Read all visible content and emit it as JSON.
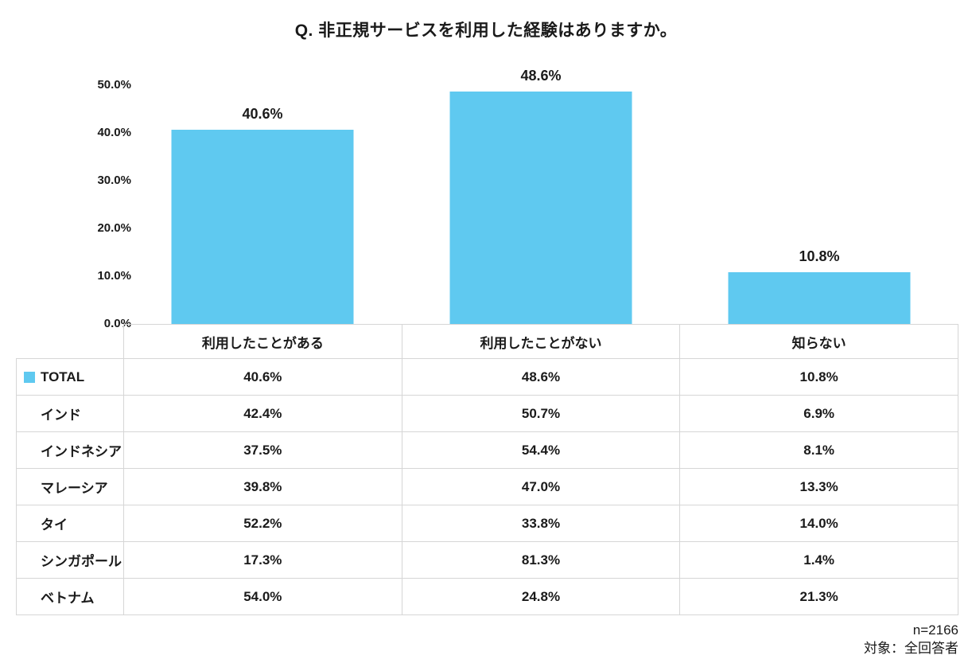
{
  "title": "Q. 非正規サービスを利用した経験はありますか。",
  "colors": {
    "bar": "#5FC9F0",
    "table_border": "#d6d6d6",
    "text": "#1a1a1a"
  },
  "chart_data": {
    "type": "bar",
    "title": "Q. 非正規サービスを利用した経験はありますか。",
    "categories": [
      "利用したことがある",
      "利用したことがない",
      "知らない"
    ],
    "series": [
      {
        "name": "TOTAL",
        "values": [
          40.6,
          48.6,
          10.8
        ]
      }
    ],
    "value_labels": [
      "40.6%",
      "48.6%",
      "10.8%"
    ],
    "xlabel": "",
    "ylabel": "",
    "ylim": [
      0,
      50
    ],
    "ytick_labels": [
      "0.0%",
      "10.0%",
      "20.0%",
      "30.0%",
      "40.0%",
      "50.0%"
    ],
    "grid": false,
    "legend_position": "table-left"
  },
  "table": {
    "columns": [
      "利用したことがある",
      "利用したことがない",
      "知らない"
    ],
    "rows": [
      {
        "label": "TOTAL",
        "legend": true,
        "values": [
          "40.6%",
          "48.6%",
          "10.8%"
        ]
      },
      {
        "label": "インド",
        "legend": false,
        "values": [
          "42.4%",
          "50.7%",
          "6.9%"
        ]
      },
      {
        "label": "インドネシア",
        "legend": false,
        "values": [
          "37.5%",
          "54.4%",
          "8.1%"
        ]
      },
      {
        "label": "マレーシア",
        "legend": false,
        "values": [
          "39.8%",
          "47.0%",
          "13.3%"
        ]
      },
      {
        "label": "タイ",
        "legend": false,
        "values": [
          "52.2%",
          "33.8%",
          "14.0%"
        ]
      },
      {
        "label": "シンガポール",
        "legend": false,
        "values": [
          "17.3%",
          "81.3%",
          "1.4%"
        ]
      },
      {
        "label": "ベトナム",
        "legend": false,
        "values": [
          "54.0%",
          "24.8%",
          "21.3%"
        ]
      }
    ]
  },
  "footer": {
    "sample_size": "n=2166",
    "audience": "対象：全回答者"
  }
}
